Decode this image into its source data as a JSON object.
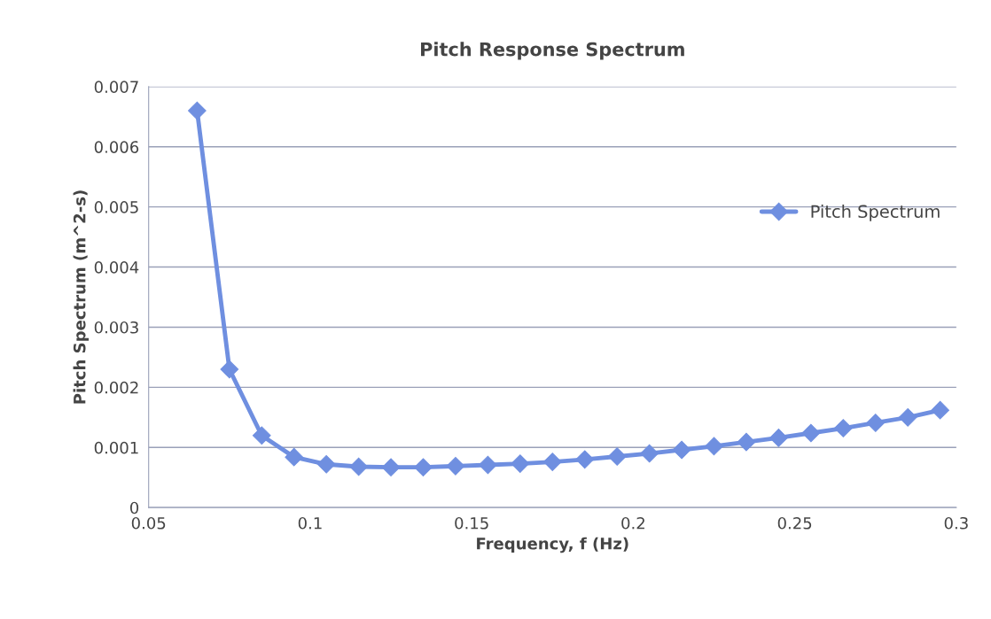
{
  "chart_data": {
    "type": "line",
    "title": "Pitch Response Spectrum",
    "xlabel": "Frequency, f (Hz)",
    "ylabel": "Pitch Spectrum (m^2-s)",
    "x": [
      0.065,
      0.075,
      0.085,
      0.095,
      0.105,
      0.115,
      0.125,
      0.135,
      0.145,
      0.155,
      0.165,
      0.175,
      0.185,
      0.195,
      0.205,
      0.215,
      0.225,
      0.235,
      0.245,
      0.255,
      0.265,
      0.275,
      0.285,
      0.295
    ],
    "series": [
      {
        "name": "Pitch Spectrum",
        "color": "#6f8fe0",
        "values": [
          0.0066,
          0.0023,
          0.0012,
          0.00084,
          0.00072,
          0.00068,
          0.00067,
          0.00067,
          0.00069,
          0.00071,
          0.00073,
          0.00076,
          0.0008,
          0.00085,
          0.0009,
          0.00096,
          0.00102,
          0.00109,
          0.00116,
          0.00124,
          0.00132,
          0.00141,
          0.0015,
          0.00162
        ]
      }
    ],
    "xlim": [
      0.05,
      0.3
    ],
    "xticks": [
      0.05,
      0.1,
      0.15,
      0.2,
      0.25,
      0.3
    ],
    "ylim": [
      0,
      0.007
    ],
    "yticks": [
      0,
      0.001,
      0.002,
      0.003,
      0.004,
      0.005,
      0.006,
      0.007
    ],
    "grid": "y",
    "legend": "right",
    "marker": "diamond",
    "line_style": "solid"
  }
}
